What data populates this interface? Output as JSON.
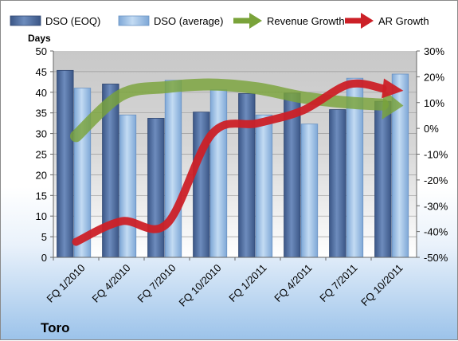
{
  "chart_data": {
    "type": "bar",
    "caption": "Toro",
    "ylabel": "Days",
    "categories": [
      "FQ 1/2010",
      "FQ 4/2010",
      "FQ 7/2010",
      "FQ 10/2010",
      "FQ 1/2011",
      "FQ 4/2011",
      "FQ 7/2011",
      "FQ 10/2011"
    ],
    "ylim": [
      0,
      50
    ],
    "y_ticks": [
      0,
      5,
      10,
      15,
      20,
      25,
      30,
      35,
      40,
      45,
      50
    ],
    "y2lim": [
      -50,
      30
    ],
    "y2_ticks": [
      "-50%",
      "-40%",
      "-30%",
      "-20%",
      "-10%",
      "0%",
      "10%",
      "20%",
      "30%"
    ],
    "y2_values": [
      -50,
      -40,
      -30,
      -20,
      -10,
      0,
      10,
      20,
      30
    ],
    "legend_position": "top",
    "series": [
      {
        "name": "DSO (EOQ)",
        "kind": "bar",
        "axis": "left",
        "color": "#4f6d9f",
        "values": [
          45.3,
          42.0,
          33.7,
          35.2,
          39.7,
          39.8,
          35.8,
          37.8
        ]
      },
      {
        "name": "DSO (average)",
        "kind": "bar",
        "axis": "left",
        "color": "#9cc1e8",
        "values": [
          41.0,
          34.5,
          42.9,
          40.6,
          34.5,
          32.3,
          43.4,
          44.4
        ]
      },
      {
        "name": "Revenue Growth",
        "kind": "line",
        "axis": "right",
        "color": "#7aa33a",
        "values": [
          -3,
          13,
          16,
          17,
          15.5,
          12,
          10,
          9
        ]
      },
      {
        "name": "AR Growth",
        "kind": "line",
        "axis": "right",
        "color": "#cc2027",
        "values": [
          -44,
          -36,
          -37,
          -2,
          2,
          7,
          17,
          15
        ]
      }
    ]
  }
}
